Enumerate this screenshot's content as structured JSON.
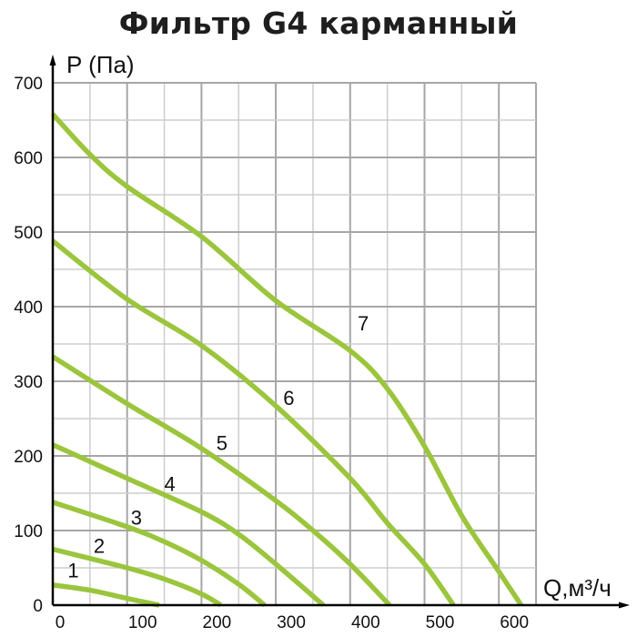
{
  "title": "Фильтр G4 карманный",
  "chart_data": {
    "type": "line",
    "title": "Фильтр G4 карманный",
    "xlabel": "Q,м³/ч",
    "ylabel": "P (Па)",
    "xlim": [
      0,
      650
    ],
    "ylim": [
      0,
      700
    ],
    "x_ticks": [
      0,
      100,
      200,
      300,
      400,
      500,
      600
    ],
    "y_ticks": [
      0,
      100,
      200,
      300,
      400,
      500,
      600,
      700
    ],
    "grid": true,
    "grid_step_x": 50,
    "grid_step_y": 50,
    "legend": "inline curve numbers",
    "color": "#9BC53D",
    "series": [
      {
        "name": "1",
        "label_at": [
          20,
          37
        ],
        "points": [
          [
            0,
            27
          ],
          [
            50,
            20
          ],
          [
            100,
            9
          ],
          [
            143,
            0
          ]
        ]
      },
      {
        "name": "2",
        "label_at": [
          55,
          70
        ],
        "points": [
          [
            0,
            75
          ],
          [
            100,
            50
          ],
          [
            150,
            35
          ],
          [
            200,
            15
          ],
          [
            226,
            0
          ]
        ]
      },
      {
        "name": "3",
        "label_at": [
          105,
          108
        ],
        "points": [
          [
            0,
            138
          ],
          [
            100,
            105
          ],
          [
            150,
            85
          ],
          [
            200,
            60
          ],
          [
            250,
            28
          ],
          [
            285,
            0
          ]
        ]
      },
      {
        "name": "4",
        "label_at": [
          150,
          153
        ],
        "points": [
          [
            0,
            215
          ],
          [
            100,
            170
          ],
          [
            200,
            125
          ],
          [
            250,
            95
          ],
          [
            300,
            55
          ],
          [
            364,
            0
          ]
        ]
      },
      {
        "name": "5",
        "label_at": [
          220,
          208
        ],
        "points": [
          [
            0,
            333
          ],
          [
            100,
            270
          ],
          [
            200,
            210
          ],
          [
            300,
            140
          ],
          [
            350,
            100
          ],
          [
            400,
            55
          ],
          [
            453,
            0
          ]
        ]
      },
      {
        "name": "6",
        "label_at": [
          310,
          268
        ],
        "points": [
          [
            0,
            488
          ],
          [
            100,
            410
          ],
          [
            200,
            348
          ],
          [
            300,
            267
          ],
          [
            400,
            170
          ],
          [
            450,
            110
          ],
          [
            500,
            55
          ],
          [
            539,
            0
          ]
        ]
      },
      {
        "name": "7",
        "label_at": [
          410,
          368
        ],
        "points": [
          [
            0,
            658
          ],
          [
            50,
            604
          ],
          [
            100,
            561
          ],
          [
            200,
            494
          ],
          [
            300,
            408
          ],
          [
            400,
            341
          ],
          [
            450,
            290
          ],
          [
            500,
            213
          ],
          [
            550,
            120
          ],
          [
            600,
            45
          ],
          [
            630,
            0
          ]
        ]
      }
    ]
  },
  "colors": {
    "curve": "#9BC53D",
    "grid_major": "#A6A6A6",
    "grid_minor": "#CDCDCD",
    "axis": "#000000",
    "text": "#111111"
  }
}
